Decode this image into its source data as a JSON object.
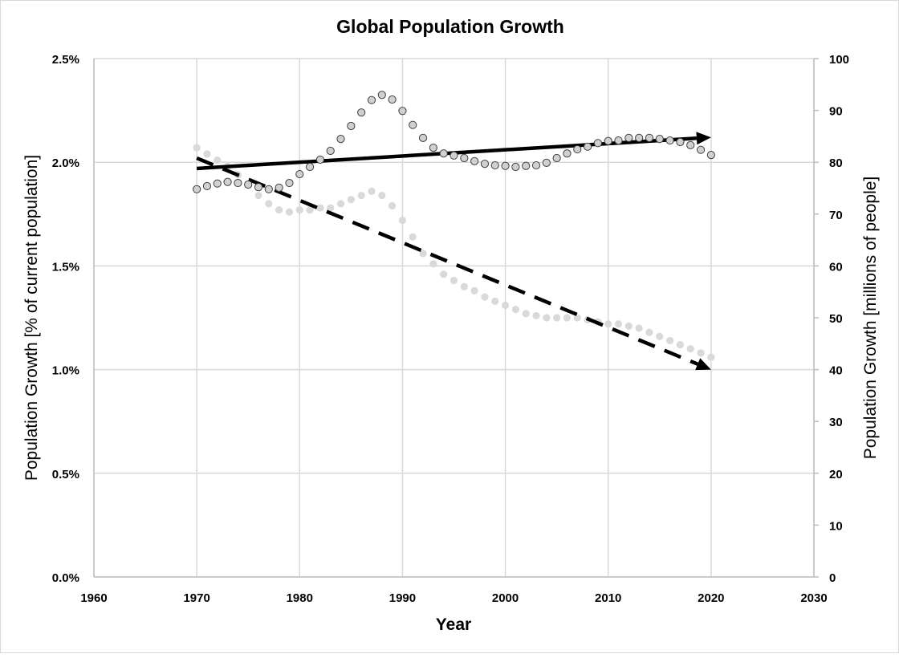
{
  "chart_data": {
    "type": "scatter",
    "title": "Global Population Growth",
    "xlabel": "Year",
    "ylabel": "Population Growth [% of current population]",
    "y2label": "Population Growth [millions of people]",
    "xlim": [
      1960,
      2030
    ],
    "ylim": [
      0,
      2.5
    ],
    "y2lim": [
      0,
      100
    ],
    "x_ticks": [
      "1960",
      "1970",
      "1980",
      "1990",
      "2000",
      "2010",
      "2020",
      "2030"
    ],
    "y_ticks": [
      "0.0%",
      "0.5%",
      "1.0%",
      "1.5%",
      "2.0%",
      "2.5%"
    ],
    "y2_ticks": [
      "0",
      "10",
      "20",
      "30",
      "40",
      "50",
      "60",
      "70",
      "80",
      "90",
      "100"
    ],
    "grid": true,
    "legend": "none",
    "x": [
      1970,
      1971,
      1972,
      1973,
      1974,
      1975,
      1976,
      1977,
      1978,
      1979,
      1980,
      1981,
      1982,
      1983,
      1984,
      1985,
      1986,
      1987,
      1988,
      1989,
      1990,
      1991,
      1992,
      1993,
      1994,
      1995,
      1996,
      1997,
      1998,
      1999,
      2000,
      2001,
      2002,
      2003,
      2004,
      2005,
      2006,
      2007,
      2008,
      2009,
      2010,
      2011,
      2012,
      2013,
      2014,
      2015,
      2016,
      2017,
      2018,
      2019,
      2020
    ],
    "series": [
      {
        "name": "Population Growth [% of current population]",
        "axis": "left",
        "marker": "light-gray-dot",
        "color": "#d9d9d9",
        "values": [
          2.07,
          2.04,
          2.01,
          1.98,
          1.94,
          1.89,
          1.84,
          1.8,
          1.77,
          1.76,
          1.77,
          1.77,
          1.78,
          1.78,
          1.8,
          1.82,
          1.84,
          1.86,
          1.84,
          1.79,
          1.72,
          1.64,
          1.56,
          1.51,
          1.46,
          1.43,
          1.4,
          1.38,
          1.35,
          1.33,
          1.31,
          1.29,
          1.27,
          1.26,
          1.25,
          1.25,
          1.25,
          1.25,
          1.24,
          1.23,
          1.22,
          1.22,
          1.21,
          1.2,
          1.18,
          1.16,
          1.14,
          1.12,
          1.1,
          1.08,
          1.06
        ]
      },
      {
        "name": "Population Growth [millions of people]",
        "axis": "right",
        "marker": "outlined-gray-circle",
        "color": "#d0d0d0",
        "edge_color": "#404040",
        "values": [
          74.8,
          75.4,
          75.9,
          76.2,
          76.0,
          75.7,
          75.2,
          74.8,
          75.1,
          76.0,
          77.7,
          79.1,
          80.5,
          82.2,
          84.5,
          87.0,
          89.6,
          92.0,
          93.0,
          92.1,
          89.9,
          87.2,
          84.7,
          82.8,
          81.7,
          81.3,
          80.8,
          80.2,
          79.7,
          79.4,
          79.3,
          79.1,
          79.3,
          79.4,
          79.9,
          80.8,
          81.7,
          82.5,
          83.0,
          83.7,
          84.1,
          84.2,
          84.7,
          84.7,
          84.7,
          84.5,
          84.2,
          83.9,
          83.3,
          82.4,
          81.4
        ]
      }
    ],
    "annotations": [
      {
        "name": "millions-trend-arrow",
        "style": "solid",
        "axis": "right",
        "from": [
          1970,
          78.8
        ],
        "to": [
          2020,
          84.8
        ],
        "color": "#000000"
      },
      {
        "name": "percent-trend-arrow",
        "style": "dashed",
        "axis": "left",
        "from": [
          1970,
          2.02
        ],
        "to": [
          2020,
          1.0
        ],
        "color": "#000000"
      }
    ]
  }
}
